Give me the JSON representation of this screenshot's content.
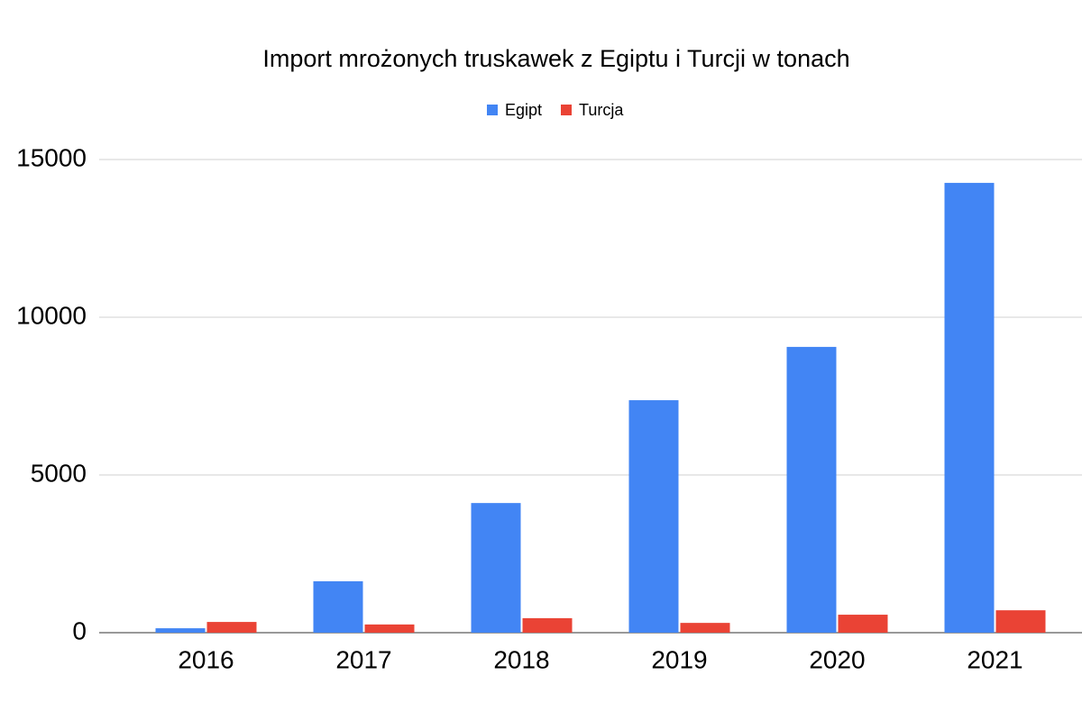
{
  "chart_data": {
    "type": "bar",
    "title": "Import mrożonych truskawek z Egiptu i Turcji w tonach",
    "categories": [
      "2016",
      "2017",
      "2018",
      "2019",
      "2020",
      "2021"
    ],
    "series": [
      {
        "name": "Egipt",
        "color": "#4285f4",
        "values": [
          140,
          1630,
          4110,
          7370,
          9060,
          14260
        ]
      },
      {
        "name": "Turcja",
        "color": "#ea4335",
        "values": [
          340,
          260,
          460,
          310,
          570,
          710
        ]
      }
    ],
    "ylim": [
      0,
      15000
    ],
    "yticks": [
      0,
      5000,
      10000,
      15000
    ],
    "grid": true,
    "legend": "top"
  }
}
